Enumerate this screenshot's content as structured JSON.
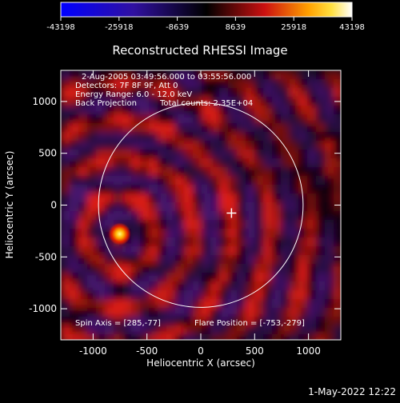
{
  "colorbar": {
    "ticks": [
      "-43198",
      "-25918",
      "-8639",
      "8639",
      "25918",
      "43198"
    ],
    "range": [
      -43198,
      43198
    ],
    "colors": {
      "low_blue": "#0000ff",
      "zero": "#000000",
      "mid_red": "#cc1010",
      "high_yellow": "#ffd020",
      "top_white": "#ffffff"
    }
  },
  "plot": {
    "title": "Reconstructed RHESSI Image",
    "annotations": {
      "time_range": "2-Aug-2005 03:49:56.000 to 03:55:56.000",
      "detectors": "Detectors: 7F 8F 9F, Att 0",
      "energy": "Energy Range: 6.0 - 12.0 keV",
      "method": "Back Projection",
      "counts": "Total counts: 2.35E+04",
      "spin_axis": "Spin Axis = [285,-77]",
      "flare_position": "Flare Position = [-753,-279]"
    }
  },
  "chart_data": {
    "type": "heatmap",
    "title": "Reconstructed RHESSI Image",
    "xlabel": "Heliocentric X (arcsec)",
    "ylabel": "Heliocentric Y (arcsec)",
    "xlim": [
      -1300,
      1300
    ],
    "ylim": [
      -1300,
      1300
    ],
    "x_ticks": [
      "-1000",
      "-500",
      "0",
      "500",
      "1000"
    ],
    "y_ticks": [
      "-1000",
      "-500",
      "0",
      "500",
      "1000"
    ],
    "x_tick_values": [
      -1000,
      -500,
      0,
      500,
      1000
    ],
    "y_tick_values": [
      -1000,
      -500,
      0,
      500,
      1000
    ],
    "value_range": [
      -43198,
      43198
    ],
    "solar_limb": {
      "center": [
        0,
        0
      ],
      "radius_arcsec": 950
    },
    "spin_axis": [
      285,
      -77
    ],
    "flare_position": [
      -753,
      -279
    ]
  },
  "footer": {
    "date": "1-May-2022 12:22"
  }
}
